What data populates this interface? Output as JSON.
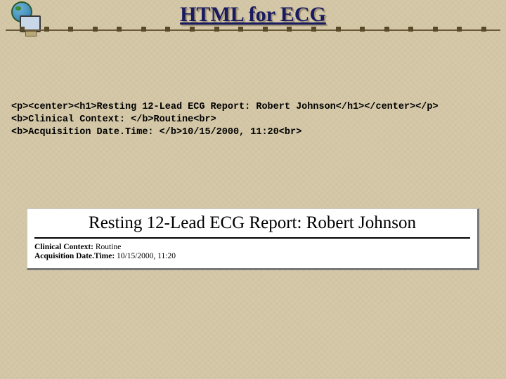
{
  "slide": {
    "title": "HTML for ECG",
    "background_color": "#d4c8a8",
    "title_color": "#1a1a60",
    "title_fontsize": 30,
    "divider_color": "#6b5a3a",
    "divider_squares": 20
  },
  "code": {
    "line1": "<p><center><h1>Resting 12-Lead ECG Report: Robert Johnson</h1></center></p>",
    "line2": "<b>Clinical Context: </b>Routine<br>",
    "line3": "<b>Acquisition Date.Time: </b>10/15/2000, 11:20<br>",
    "font_family": "Courier New",
    "fontsize": 13.5,
    "color": "#000000"
  },
  "rendered": {
    "heading": "Resting 12-Lead ECG Report: Robert Johnson",
    "heading_fontsize": 25,
    "context_label": "Clinical Context: ",
    "context_value": "Routine",
    "datetime_label": "Acquisition Date.Time: ",
    "datetime_value": "10/15/2000, 11:20",
    "box_bg": "#ffffff",
    "box_shadow": "#787878",
    "label_fontsize": 11.5
  },
  "icon": {
    "name": "globe-computer-icon",
    "globe_color": "#2a7aa8",
    "monitor_color": "#c8d8e8"
  }
}
